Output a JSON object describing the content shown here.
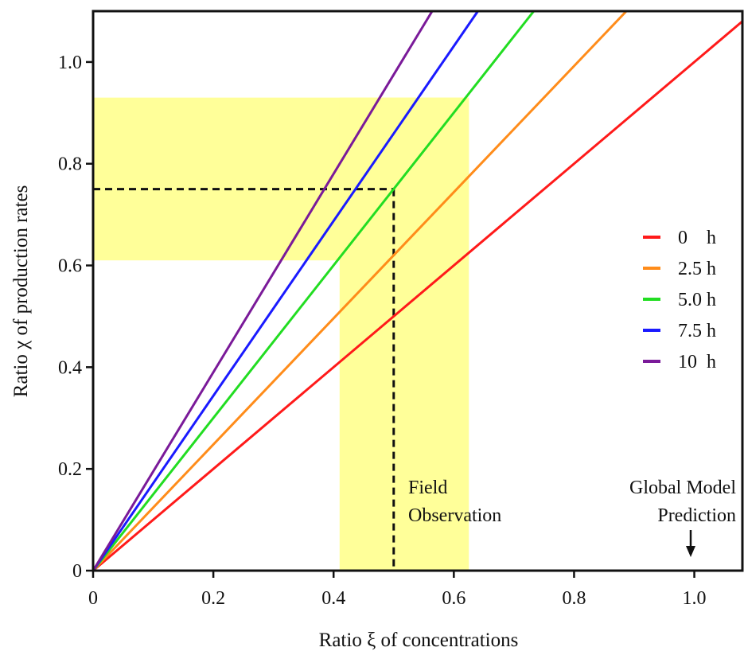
{
  "chart_data": {
    "type": "line",
    "xlabel": "Ratio ξ of concentrations",
    "ylabel": "Ratio χ of production rates",
    "xlim": [
      0,
      1.08
    ],
    "ylim": [
      0,
      1.1
    ],
    "x_ticks": [
      0,
      0.2,
      0.4,
      0.6,
      0.8,
      1.0
    ],
    "x_tick_labels": [
      "0",
      "0.2",
      "0.4",
      "0.6",
      "0.8",
      "1.0"
    ],
    "y_ticks": [
      0,
      0.2,
      0.4,
      0.6,
      0.8,
      1.0
    ],
    "y_tick_labels": [
      "0",
      "0.2",
      "0.4",
      "0.6",
      "0.8",
      "1.0"
    ],
    "grid": false,
    "legend_position": "right",
    "series": [
      {
        "name": "0    h",
        "color": "#ff1a1a",
        "slope": 1.0,
        "x": [
          0,
          1.08
        ],
        "y": [
          0,
          1.08
        ]
      },
      {
        "name": "2.5 h",
        "color": "#ff8c1a",
        "slope": 1.24,
        "x": [
          0,
          0.887
        ],
        "y": [
          0,
          1.1
        ]
      },
      {
        "name": "5.0 h",
        "color": "#22dd22",
        "slope": 1.5,
        "x": [
          0,
          0.733
        ],
        "y": [
          0,
          1.1
        ]
      },
      {
        "name": "7.5 h",
        "color": "#1a1aff",
        "slope": 1.72,
        "x": [
          0,
          0.64
        ],
        "y": [
          0,
          1.1
        ]
      },
      {
        "name": "10  h",
        "color": "#7a1a99",
        "slope": 1.95,
        "x": [
          0,
          0.564
        ],
        "y": [
          0,
          1.1
        ]
      }
    ],
    "shaded_regions": [
      {
        "axis": "y",
        "from": 0.61,
        "to": 0.93,
        "color": "#ffff99"
      },
      {
        "axis": "x",
        "from": 0.41,
        "to": 0.625,
        "color": "#ffff99"
      }
    ],
    "reference_lines": {
      "x": 0.5,
      "y": 0.75,
      "style": "dashed",
      "color": "#111111"
    },
    "annotations": {
      "field_observation": [
        "Field",
        "Observation"
      ],
      "global_model": [
        "Global Model",
        "Prediction"
      ],
      "global_model_x": 1.0
    }
  }
}
